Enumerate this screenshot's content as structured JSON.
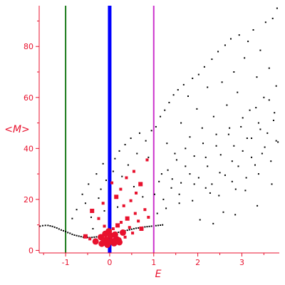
{
  "chart_data": {
    "type": "scatter",
    "xlabel": "E",
    "ylabel": "<M>",
    "xlim": [
      -1.6,
      3.85
    ],
    "ylim": [
      -1,
      96
    ],
    "x_ticks": [
      -1,
      0,
      1,
      2,
      3
    ],
    "x_tick_labels": [
      "-1",
      "0",
      "1",
      "2",
      "3"
    ],
    "y_ticks": [
      0,
      20,
      40,
      60,
      80
    ],
    "y_tick_labels": [
      "0",
      "20",
      "40",
      "60",
      "80"
    ],
    "grid": false,
    "axis_color": "#e8112d",
    "vertical_lines": [
      {
        "x": -1.0,
        "color": "#1a7a1a"
      },
      {
        "x": 0.0,
        "color": "#0000ff"
      },
      {
        "x": 1.0,
        "color": "#cc33cc"
      }
    ],
    "series": [
      {
        "color": "#000000",
        "marker": "small-dot",
        "points": [
          [
            -1.58,
            9.5
          ],
          [
            -1.52,
            9.7
          ],
          [
            -1.46,
            9.8
          ],
          [
            -1.4,
            9.8
          ],
          [
            -1.35,
            9.6
          ],
          [
            -1.3,
            9.4
          ],
          [
            -1.25,
            9.1
          ],
          [
            -1.2,
            8.8
          ],
          [
            -1.15,
            8.4
          ],
          [
            -1.1,
            8.0
          ],
          [
            -1.05,
            7.7
          ],
          [
            -1.0,
            7.4
          ],
          [
            -0.95,
            7.0
          ],
          [
            -0.9,
            6.7
          ],
          [
            -0.85,
            6.3
          ],
          [
            -0.8,
            6.0
          ],
          [
            -0.75,
            5.8
          ],
          [
            -0.7,
            5.6
          ],
          [
            -0.65,
            5.4
          ],
          [
            -0.6,
            5.2
          ],
          [
            -0.55,
            5.1
          ],
          [
            -0.5,
            5.1
          ],
          [
            -0.45,
            5.0
          ],
          [
            -0.4,
            5.1
          ],
          [
            -0.35,
            5.2
          ],
          [
            -0.3,
            5.3
          ],
          [
            -0.25,
            5.4
          ],
          [
            -0.2,
            5.6
          ],
          [
            -0.15,
            5.8
          ],
          [
            -0.1,
            6.0
          ],
          [
            -0.05,
            6.2
          ],
          [
            0.05,
            6.5
          ],
          [
            0.1,
            6.7
          ],
          [
            0.15,
            6.9
          ],
          [
            0.2,
            7.1
          ],
          [
            0.25,
            7.3
          ],
          [
            0.3,
            7.5
          ],
          [
            0.35,
            7.7
          ],
          [
            0.4,
            7.9
          ],
          [
            0.45,
            8.1
          ],
          [
            0.5,
            8.3
          ],
          [
            0.55,
            8.5
          ],
          [
            0.6,
            8.7
          ],
          [
            0.65,
            8.8
          ],
          [
            0.7,
            9.0
          ],
          [
            0.75,
            9.1
          ],
          [
            0.8,
            9.2
          ],
          [
            0.85,
            9.3
          ],
          [
            0.9,
            9.4
          ],
          [
            0.95,
            9.5
          ],
          [
            1.05,
            9.7
          ],
          [
            1.1,
            9.8
          ],
          [
            1.15,
            9.9
          ],
          [
            1.2,
            10.0
          ],
          [
            -0.85,
            12.5
          ],
          [
            -0.75,
            16.0
          ],
          [
            -0.62,
            22.0
          ],
          [
            -0.55,
            18.5
          ],
          [
            -0.48,
            26.0
          ],
          [
            -0.42,
            13.0
          ],
          [
            -0.38,
            8.5
          ],
          [
            -0.3,
            30.0
          ],
          [
            -0.25,
            20.5
          ],
          [
            -0.2,
            24.0
          ],
          [
            -0.15,
            34.0
          ],
          [
            -0.12,
            15.5
          ],
          [
            -0.08,
            27.5
          ],
          [
            0.08,
            31.0
          ],
          [
            0.12,
            36.0
          ],
          [
            0.18,
            17.0
          ],
          [
            0.22,
            39.0
          ],
          [
            0.28,
            29.0
          ],
          [
            0.35,
            41.5
          ],
          [
            0.42,
            33.5
          ],
          [
            0.48,
            44.0
          ],
          [
            0.55,
            25.0
          ],
          [
            0.62,
            38.0
          ],
          [
            0.68,
            46.0
          ],
          [
            0.75,
            21.0
          ],
          [
            0.82,
            43.0
          ],
          [
            0.88,
            36.5
          ],
          [
            0.95,
            47.0
          ],
          [
            1.05,
            48.5
          ],
          [
            1.08,
            14.5
          ],
          [
            1.15,
            52.5
          ],
          [
            1.18,
            30.0
          ],
          [
            1.25,
            55.0
          ],
          [
            1.3,
            42.0
          ],
          [
            1.35,
            58.0
          ],
          [
            1.4,
            24.5
          ],
          [
            1.45,
            61.0
          ],
          [
            1.48,
            38.0
          ],
          [
            1.55,
            63.0
          ],
          [
            1.58,
            18.5
          ],
          [
            1.62,
            50.0
          ],
          [
            1.68,
            65.0
          ],
          [
            1.72,
            33.0
          ],
          [
            1.78,
            60.5
          ],
          [
            1.82,
            44.5
          ],
          [
            1.88,
            67.5
          ],
          [
            1.92,
            26.0
          ],
          [
            1.98,
            55.5
          ],
          [
            2.02,
            69.0
          ],
          [
            2.05,
            12.0
          ],
          [
            2.1,
            48.0
          ],
          [
            2.15,
            72.0
          ],
          [
            2.18,
            36.5
          ],
          [
            2.22,
            64.0
          ],
          [
            2.28,
            22.5
          ],
          [
            2.32,
            75.0
          ],
          [
            2.36,
            52.5
          ],
          [
            2.42,
            41.0
          ],
          [
            2.46,
            78.0
          ],
          [
            2.5,
            30.5
          ],
          [
            2.55,
            66.0
          ],
          [
            2.58,
            15.0
          ],
          [
            2.62,
            80.5
          ],
          [
            2.66,
            57.0
          ],
          [
            2.7,
            45.5
          ],
          [
            2.75,
            83.0
          ],
          [
            2.78,
            35.0
          ],
          [
            2.82,
            70.0
          ],
          [
            2.86,
            24.0
          ],
          [
            2.9,
            62.0
          ],
          [
            2.94,
            84.5
          ],
          [
            2.98,
            48.5
          ],
          [
            3.02,
            39.0
          ],
          [
            3.06,
            75.5
          ],
          [
            3.1,
            28.5
          ],
          [
            3.14,
            82.0
          ],
          [
            3.18,
            55.0
          ],
          [
            3.22,
            44.0
          ],
          [
            3.26,
            86.5
          ],
          [
            3.3,
            33.5
          ],
          [
            3.34,
            68.0
          ],
          [
            3.38,
            50.0
          ],
          [
            3.42,
            78.5
          ],
          [
            3.46,
            38.0
          ],
          [
            3.5,
            60.0
          ],
          [
            3.54,
            89.5
          ],
          [
            3.58,
            46.0
          ],
          [
            3.62,
            71.5
          ],
          [
            3.66,
            35.0
          ],
          [
            3.7,
            91.0
          ],
          [
            3.74,
            54.0
          ],
          [
            3.78,
            64.5
          ],
          [
            3.8,
            95.0
          ],
          [
            3.82,
            42.5
          ],
          [
            1.02,
            22.0
          ],
          [
            1.12,
            27.0
          ],
          [
            1.22,
            20.0
          ],
          [
            1.32,
            31.5
          ],
          [
            1.42,
            28.0
          ],
          [
            1.52,
            35.5
          ],
          [
            1.62,
            26.5
          ],
          [
            1.72,
            40.0
          ],
          [
            1.82,
            30.0
          ],
          [
            1.92,
            37.0
          ],
          [
            2.02,
            28.5
          ],
          [
            2.12,
            42.0
          ],
          [
            2.22,
            33.0
          ],
          [
            2.32,
            26.0
          ],
          [
            2.42,
            45.5
          ],
          [
            2.52,
            37.5
          ],
          [
            2.62,
            29.5
          ],
          [
            2.72,
            48.0
          ],
          [
            2.82,
            41.0
          ],
          [
            2.92,
            33.0
          ],
          [
            3.02,
            52.0
          ],
          [
            3.12,
            44.0
          ],
          [
            3.22,
            36.5
          ],
          [
            3.32,
            56.0
          ],
          [
            3.42,
            47.5
          ],
          [
            3.52,
            40.5
          ],
          [
            3.62,
            59.0
          ],
          [
            3.72,
            51.0
          ],
          [
            3.78,
            43.0
          ],
          [
            1.28,
            16.5
          ],
          [
            1.58,
            22.0
          ],
          [
            1.88,
            19.5
          ],
          [
            2.18,
            24.5
          ],
          [
            2.48,
            21.5
          ],
          [
            2.78,
            27.0
          ],
          [
            3.08,
            23.5
          ],
          [
            3.38,
            30.0
          ],
          [
            3.68,
            26.0
          ],
          [
            2.35,
            10.5
          ],
          [
            2.85,
            14.0
          ],
          [
            3.35,
            17.5
          ]
        ]
      },
      {
        "color": "#e8112d",
        "marker": "large-square",
        "points": [
          [
            -0.55,
            5.5
          ],
          [
            -0.45,
            4.5
          ],
          [
            -0.32,
            3.5
          ],
          [
            -0.2,
            5.2
          ],
          [
            -0.15,
            3.0
          ],
          [
            -0.1,
            6.5
          ],
          [
            -0.08,
            4.2
          ],
          [
            -0.05,
            2.2
          ],
          [
            -0.02,
            7.5
          ],
          [
            0.02,
            5.8
          ],
          [
            0.05,
            3.6
          ],
          [
            0.08,
            8.5
          ],
          [
            0.1,
            2.8
          ],
          [
            0.12,
            6.2
          ],
          [
            0.15,
            4.5
          ],
          [
            0.18,
            9.8
          ],
          [
            0.22,
            3.2
          ],
          [
            0.26,
            11.0
          ],
          [
            0.3,
            7.0
          ],
          [
            0.35,
            5.2
          ],
          [
            0.4,
            12.5
          ],
          [
            0.45,
            9.0
          ],
          [
            0.52,
            6.8
          ],
          [
            0.58,
            14.5
          ],
          [
            0.65,
            11.5
          ],
          [
            0.72,
            8.5
          ],
          [
            0.8,
            16.0
          ],
          [
            0.88,
            13.0
          ],
          [
            -0.12,
            9.5
          ],
          [
            -0.25,
            12.5
          ],
          [
            -0.4,
            15.5
          ],
          [
            0.32,
            17.5
          ],
          [
            0.48,
            19.5
          ],
          [
            0.6,
            22.5
          ],
          [
            0.25,
            24.0
          ],
          [
            0.15,
            21.0
          ],
          [
            -0.15,
            18.5
          ],
          [
            0.05,
            26.5
          ],
          [
            0.38,
            28.5
          ],
          [
            0.55,
            31.0
          ],
          [
            0.7,
            26.0
          ],
          [
            0.85,
            35.5
          ],
          [
            0.12,
            3.4
          ],
          [
            0.2,
            4.0
          ],
          [
            0.0,
            3.3
          ],
          [
            -0.18,
            2.6
          ]
        ]
      }
    ]
  }
}
